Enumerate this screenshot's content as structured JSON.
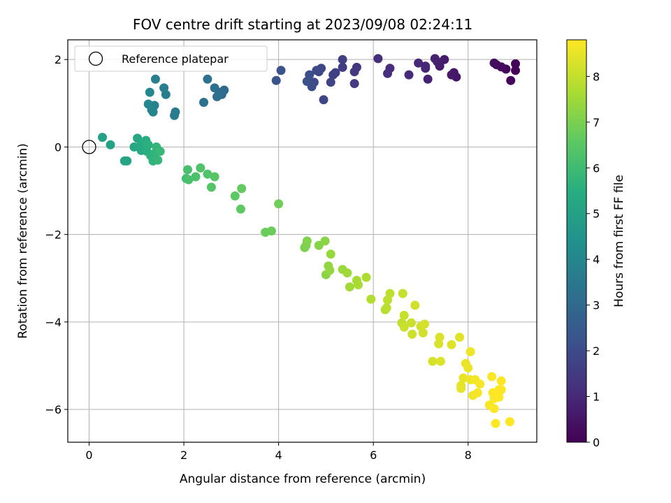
{
  "chart_data": {
    "type": "scatter",
    "title": "FOV centre drift starting at 2023/09/08 02:24:11",
    "xlabel": "Angular distance from reference (arcmin)",
    "ylabel": "Rotation from reference (arcmin)",
    "xlim": [
      -0.45,
      9.45
    ],
    "ylim": [
      -6.75,
      2.45
    ],
    "xticks": [
      0,
      2,
      4,
      6,
      8
    ],
    "yticks": [
      2,
      0,
      -2,
      -4,
      -6
    ],
    "xtick_labels": [
      "0",
      "2",
      "4",
      "6",
      "8"
    ],
    "ytick_labels": [
      "2",
      "0",
      "−2",
      "−4",
      "−6"
    ],
    "grid": true,
    "legend": {
      "placement": "upper-left",
      "entries": [
        {
          "label": "Reference platepar",
          "marker": "open-circle",
          "x": 0,
          "y": 0
        }
      ]
    },
    "colorbar": {
      "label": "Hours from first FF file",
      "colormap": "viridis",
      "range": [
        0,
        8.8
      ],
      "ticks": [
        0,
        1,
        2,
        3,
        4,
        5,
        6,
        7,
        8
      ],
      "tick_labels": [
        "0",
        "1",
        "2",
        "3",
        "4",
        "5",
        "6",
        "7",
        "8"
      ]
    },
    "series": [
      {
        "x": [
          9.0,
          9.0,
          8.9,
          8.8,
          8.7,
          8.6,
          8.55,
          7.75,
          7.7,
          7.65,
          7.5,
          7.4,
          7.35,
          7.3,
          7.15,
          7.1,
          7.1,
          6.95,
          6.75,
          6.35,
          6.3,
          6.1,
          5.65,
          5.6,
          5.6,
          5.35,
          5.35,
          5.2,
          5.15,
          5.1,
          4.95,
          4.9,
          4.85,
          4.8,
          4.75,
          4.7,
          4.65,
          4.6,
          4.05,
          3.95,
          2.85,
          2.8,
          2.75,
          2.7,
          2.65,
          2.5,
          2.42,
          1.82,
          1.8,
          1.62,
          1.58,
          1.4,
          1.38,
          1.35,
          1.32,
          1.28,
          1.25,
          0.28,
          0.45,
          0.75,
          0.8,
          0.95,
          1.02,
          1.05,
          1.1,
          1.15,
          1.2,
          1.22,
          1.25,
          1.3,
          1.35,
          1.38,
          1.42,
          1.45,
          1.5,
          2.05,
          2.08,
          2.1,
          2.25,
          2.35,
          2.5,
          2.58,
          2.65,
          3.08,
          3.2,
          3.22,
          3.72,
          3.85,
          4.0,
          4.55,
          4.58,
          4.6,
          4.85,
          4.98,
          5.0,
          5.05,
          5.08,
          5.1,
          5.35,
          5.45,
          5.5,
          5.65,
          5.68,
          5.85,
          5.95,
          6.25,
          6.28,
          6.3,
          6.35,
          6.6,
          6.62,
          6.65,
          6.65,
          6.8,
          6.82,
          6.88,
          7.0,
          7.05,
          7.08,
          7.25,
          7.38,
          7.4,
          7.42,
          7.65,
          7.82,
          7.85,
          7.85,
          7.9,
          7.95,
          8.0,
          8.05,
          8.05,
          8.1,
          8.15,
          8.2,
          8.25,
          8.45,
          8.5,
          8.52,
          8.55,
          8.55,
          8.58,
          8.6,
          8.62,
          8.65,
          8.65,
          8.7,
          8.7,
          8.88
        ],
        "y": [
          1.75,
          1.9,
          1.52,
          1.78,
          1.83,
          1.88,
          1.92,
          1.6,
          1.7,
          1.65,
          2.0,
          1.85,
          1.95,
          2.02,
          1.55,
          1.8,
          1.85,
          1.92,
          1.65,
          1.8,
          1.68,
          2.02,
          1.82,
          1.72,
          1.45,
          1.82,
          2.0,
          1.7,
          1.65,
          1.48,
          1.08,
          1.8,
          1.72,
          1.75,
          1.48,
          1.38,
          1.65,
          1.5,
          1.75,
          1.52,
          1.3,
          1.2,
          1.25,
          1.15,
          1.35,
          1.55,
          1.02,
          0.8,
          0.72,
          1.2,
          1.35,
          1.55,
          0.95,
          0.8,
          0.85,
          1.25,
          0.98,
          0.22,
          0.05,
          -0.32,
          -0.32,
          0.0,
          0.2,
          0.0,
          -0.08,
          0.1,
          0.15,
          -0.1,
          0.05,
          -0.2,
          -0.32,
          -0.15,
          0.0,
          -0.3,
          -0.1,
          -0.72,
          -0.52,
          -0.75,
          -0.68,
          -0.48,
          -0.62,
          -0.92,
          -0.68,
          -1.12,
          -1.42,
          -0.95,
          -1.95,
          -1.92,
          -1.3,
          -2.3,
          -2.25,
          -2.15,
          -2.25,
          -2.15,
          -2.92,
          -2.72,
          -2.82,
          -2.45,
          -2.8,
          -2.88,
          -3.2,
          -3.05,
          -3.15,
          -2.98,
          -3.48,
          -3.72,
          -3.68,
          -3.5,
          -3.35,
          -4.02,
          -3.35,
          -3.85,
          -4.12,
          -4.02,
          -4.28,
          -3.62,
          -4.1,
          -4.25,
          -4.05,
          -4.9,
          -4.5,
          -4.35,
          -4.9,
          -4.52,
          -4.35,
          -5.45,
          -5.52,
          -5.28,
          -4.95,
          -5.05,
          -5.32,
          -4.68,
          -5.68,
          -5.32,
          -5.62,
          -5.42,
          -5.9,
          -5.25,
          -5.62,
          -5.75,
          -5.98,
          -6.32,
          -5.65,
          -5.72,
          -5.55,
          -5.72,
          -5.35,
          -5.55,
          -6.28
        ],
        "hours": [
          0.05,
          0.1,
          0.15,
          0.2,
          0.25,
          0.3,
          0.35,
          0.5,
          0.55,
          0.6,
          0.65,
          0.7,
          0.75,
          0.8,
          0.85,
          0.9,
          0.95,
          1.0,
          1.05,
          1.1,
          1.15,
          1.2,
          1.4,
          1.45,
          1.5,
          1.55,
          1.6,
          1.65,
          1.7,
          1.75,
          1.8,
          1.85,
          1.9,
          1.95,
          2.0,
          2.05,
          2.1,
          2.15,
          2.2,
          2.25,
          3.0,
          3.05,
          3.1,
          3.15,
          3.2,
          3.25,
          3.3,
          3.6,
          3.65,
          3.7,
          3.75,
          3.8,
          3.85,
          3.9,
          3.95,
          4.0,
          4.05,
          5.0,
          5.05,
          5.1,
          5.15,
          5.2,
          5.25,
          5.3,
          5.35,
          5.4,
          5.45,
          5.5,
          5.55,
          5.6,
          5.65,
          5.7,
          5.75,
          5.8,
          5.85,
          6.1,
          6.15,
          6.2,
          6.25,
          6.3,
          6.35,
          6.4,
          6.45,
          6.55,
          6.6,
          6.65,
          6.75,
          6.8,
          6.85,
          7.0,
          7.05,
          7.1,
          7.15,
          7.2,
          7.25,
          7.3,
          7.35,
          7.4,
          7.45,
          7.5,
          7.55,
          7.6,
          7.65,
          7.7,
          7.75,
          7.8,
          7.85,
          7.9,
          7.95,
          8.0,
          8.02,
          8.05,
          8.08,
          8.1,
          8.12,
          8.15,
          8.18,
          8.2,
          8.22,
          8.25,
          8.3,
          8.32,
          8.35,
          8.38,
          8.4,
          8.45,
          8.48,
          8.5,
          8.52,
          8.55,
          8.58,
          8.6,
          8.62,
          8.65,
          8.67,
          8.7,
          8.72,
          8.74,
          8.75,
          8.76,
          8.77,
          8.78,
          8.79,
          8.8,
          8.8,
          8.8,
          8.8,
          8.8,
          8.8
        ]
      }
    ],
    "colors": {
      "grid": "#b0b0b0",
      "axes": "#000000",
      "legend_border": "#cccccc"
    }
  }
}
